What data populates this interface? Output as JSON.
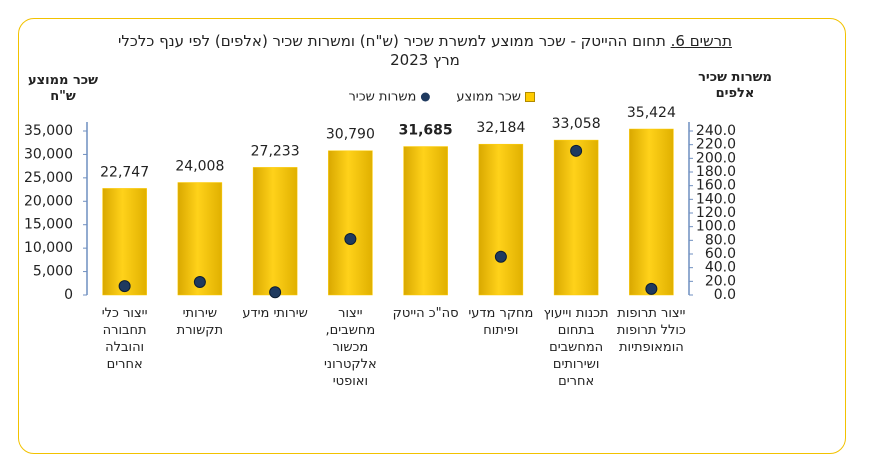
{
  "chart_data": {
    "type": "bar",
    "figure_label": "תרשים 6.",
    "title": "תחום ההייטק - שכר ממוצע למשרת שכיר (ש\"ח) ומשרות שכיר (אלפים) לפי ענף כלכלי",
    "subtitle": "מרץ 2023",
    "y_label": [
      "שכר ממוצע",
      "ש\"ח"
    ],
    "y2_label": [
      "משרות שכיר",
      "אלפים"
    ],
    "categories": [
      "ייצור כלי תחבורה והובלה אחרים",
      "שירותי תקשורת",
      "שירותי מידע",
      "ייצור מחשבים, מכשור אלקטרוני ואופטי",
      "סה\"כ הייטק",
      "מחקר מדעי ופיתוח",
      "תכנות וייעוץ בתחום המחשבים ושירותים אחרים",
      "ייצור תרופות כולל תרופות הומאופתיות"
    ],
    "series": [
      {
        "name": "שכר ממוצע",
        "color": "#ffcc00",
        "values": [
          22747,
          24008,
          27233,
          30790,
          31685,
          32184,
          33058,
          35424
        ],
        "value_labels": [
          "22,747",
          "24,008",
          "27,233",
          "30,790",
          "31,685",
          "32,184",
          "33,058",
          "35,424"
        ]
      },
      {
        "name": "משרות שכיר",
        "color": "#1f3a5f",
        "axis": "y2",
        "values": [
          13,
          19,
          4,
          82,
          null,
          56,
          211,
          9
        ]
      }
    ],
    "ylim": [
      0,
      35000
    ],
    "yticks": [
      0,
      {
        "value": 5000,
        "label": "5,000"
      },
      {
        "value": 10000,
        "label": "10,000"
      },
      {
        "value": 15000,
        "label": "15,000"
      },
      {
        "value": 20000,
        "label": "20,000"
      },
      {
        "value": 25000,
        "label": "25,000"
      },
      {
        "value": 30000,
        "label": "30,000"
      },
      {
        "value": 35000,
        "label": "35,000"
      }
    ],
    "y2lim": [
      0,
      240
    ],
    "y2ticks": [
      {
        "value": 0,
        "label": "0.0"
      },
      {
        "value": 20,
        "label": "20.0"
      },
      {
        "value": 40,
        "label": "40.0"
      },
      {
        "value": 60,
        "label": "60.0"
      },
      {
        "value": 80,
        "label": "80.0"
      },
      {
        "value": 100,
        "label": "100.0"
      },
      {
        "value": 120,
        "label": "120.0"
      },
      {
        "value": 140,
        "label": "140.0"
      },
      {
        "value": 160,
        "label": "160.0"
      },
      {
        "value": 180,
        "label": "180.0"
      },
      {
        "value": 200,
        "label": "200.0"
      },
      {
        "value": 220,
        "label": "220.0"
      },
      {
        "value": 240,
        "label": "240.0"
      }
    ],
    "legend": "top"
  }
}
